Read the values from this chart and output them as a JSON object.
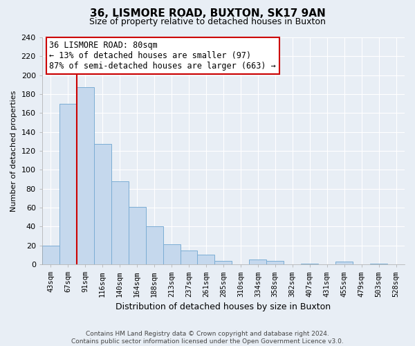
{
  "title": "36, LISMORE ROAD, BUXTON, SK17 9AN",
  "subtitle": "Size of property relative to detached houses in Buxton",
  "xlabel": "Distribution of detached houses by size in Buxton",
  "ylabel": "Number of detached properties",
  "bin_labels": [
    "43sqm",
    "67sqm",
    "91sqm",
    "116sqm",
    "140sqm",
    "164sqm",
    "188sqm",
    "213sqm",
    "237sqm",
    "261sqm",
    "285sqm",
    "310sqm",
    "334sqm",
    "358sqm",
    "382sqm",
    "407sqm",
    "431sqm",
    "455sqm",
    "479sqm",
    "503sqm",
    "528sqm"
  ],
  "bar_heights": [
    20,
    170,
    187,
    127,
    88,
    61,
    40,
    21,
    15,
    10,
    4,
    0,
    5,
    4,
    0,
    1,
    0,
    3,
    0,
    1,
    0
  ],
  "bar_color": "#c5d8ed",
  "bar_edge_color": "#7badd4",
  "vline_x_idx": 1,
  "vline_color": "#cc0000",
  "ylim": [
    0,
    240
  ],
  "yticks": [
    0,
    20,
    40,
    60,
    80,
    100,
    120,
    140,
    160,
    180,
    200,
    220,
    240
  ],
  "annotation_title": "36 LISMORE ROAD: 80sqm",
  "annotation_line1": "← 13% of detached houses are smaller (97)",
  "annotation_line2": "87% of semi-detached houses are larger (663) →",
  "annotation_box_color": "#ffffff",
  "annotation_box_edge": "#cc0000",
  "footer_line1": "Contains HM Land Registry data © Crown copyright and database right 2024.",
  "footer_line2": "Contains public sector information licensed under the Open Government Licence v3.0.",
  "background_color": "#e8eef5",
  "grid_color": "#ffffff",
  "title_fontsize": 11,
  "subtitle_fontsize": 9,
  "ylabel_fontsize": 8,
  "xlabel_fontsize": 9,
  "tick_fontsize": 8,
  "xtick_fontsize": 7.5,
  "ann_fontsize": 8.5
}
